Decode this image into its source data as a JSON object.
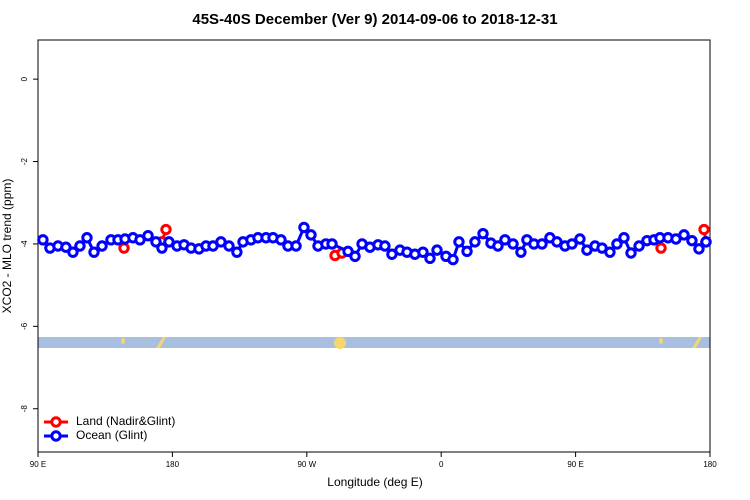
{
  "chart_data": {
    "type": "line",
    "title": "45S-40S December (Ver 9)   2014-09-06 to 2018-12-31",
    "x_label": "Longitude (deg E)",
    "y_label": "XCO2 - MLO trend (ppm)",
    "xlim": [
      90,
      540
    ],
    "xticks": [
      {
        "value": 90,
        "label": "90 E"
      },
      180,
      {
        "value": 270,
        "label": "90 W"
      },
      {
        "value": 360,
        "label": "0"
      },
      {
        "value": 450,
        "label": "90 E"
      },
      {
        "value": 540,
        "label": "180"
      }
    ],
    "ylim": [
      -9.05,
      0.95
    ],
    "yticks": [
      0,
      -2,
      -4,
      -6,
      -8
    ],
    "legend": "bottom-left",
    "series": [
      {
        "name": "Land (Nadir&Glint)",
        "color": "#ff0000",
        "x": [
          147.6,
          null,
          173.0,
          175.7,
          null,
          288.9,
          293.6,
          null,
          507.2,
          null,
          536.0,
          537.3
        ],
        "values": [
          -4.1,
          null,
          -3.95,
          -3.65,
          null,
          -4.28,
          -4.22,
          null,
          -4.1,
          null,
          -3.65,
          -3.95
        ]
      },
      {
        "name": "Ocean (Glint)",
        "color": "#0000ff",
        "x": [
          93.3,
          98.0,
          103.4,
          108.7,
          113.4,
          118.1,
          122.8,
          127.5,
          132.9,
          138.9,
          143.6,
          148.3,
          153.6,
          158.3,
          163.7,
          169.0,
          173.0,
          177.7,
          183.1,
          187.8,
          192.5,
          197.8,
          202.5,
          207.2,
          212.5,
          217.9,
          223.2,
          227.3,
          232.6,
          237.3,
          242.7,
          247.4,
          252.7,
          257.4,
          262.8,
          268.1,
          272.8,
          277.5,
          282.8,
          286.9,
          297.6,
          302.3,
          307.0,
          312.3,
          317.7,
          322.3,
          327.0,
          332.4,
          337.1,
          342.4,
          347.8,
          352.5,
          357.2,
          363.2,
          367.9,
          371.9,
          377.3,
          382.6,
          388.0,
          393.3,
          398.0,
          402.7,
          408.1,
          413.4,
          417.4,
          422.1,
          427.5,
          432.8,
          437.5,
          442.9,
          447.6,
          452.9,
          457.6,
          463.0,
          467.7,
          473.0,
          477.7,
          482.4,
          487.1,
          492.5,
          497.8,
          502.5,
          506.5,
          511.9,
          517.2,
          522.6,
          527.9,
          532.6,
          537.3
        ],
        "values": [
          -3.9,
          -4.1,
          -4.05,
          -4.08,
          -4.2,
          -4.05,
          -3.85,
          -4.2,
          -4.05,
          -3.9,
          -3.9,
          -3.88,
          -3.85,
          -3.9,
          -3.8,
          -3.95,
          -4.1,
          -3.95,
          -4.05,
          -4.02,
          -4.1,
          -4.12,
          -4.05,
          -4.05,
          -3.95,
          -4.05,
          -4.2,
          -3.95,
          -3.9,
          -3.85,
          -3.85,
          -3.85,
          -3.9,
          -4.05,
          -4.05,
          -3.6,
          -3.78,
          -4.05,
          -4.0,
          -4.0,
          -4.18,
          -4.3,
          -4.0,
          -4.08,
          -4.02,
          -4.05,
          -4.25,
          -4.15,
          -4.2,
          -4.25,
          -4.2,
          -4.35,
          -4.15,
          -4.3,
          -4.38,
          -3.95,
          -4.18,
          -3.95,
          -3.75,
          -3.98,
          -4.05,
          -3.9,
          -4.0,
          -4.2,
          -3.9,
          -4.0,
          -4.0,
          -3.85,
          -3.95,
          -4.05,
          -4.0,
          -3.88,
          -4.15,
          -4.05,
          -4.1,
          -4.2,
          -4.0,
          -3.85,
          -4.22,
          -4.05,
          -3.92,
          -3.9,
          -3.85,
          -3.85,
          -3.88,
          -3.78,
          -3.92,
          -4.12,
          -3.95
        ]
      }
    ]
  }
}
